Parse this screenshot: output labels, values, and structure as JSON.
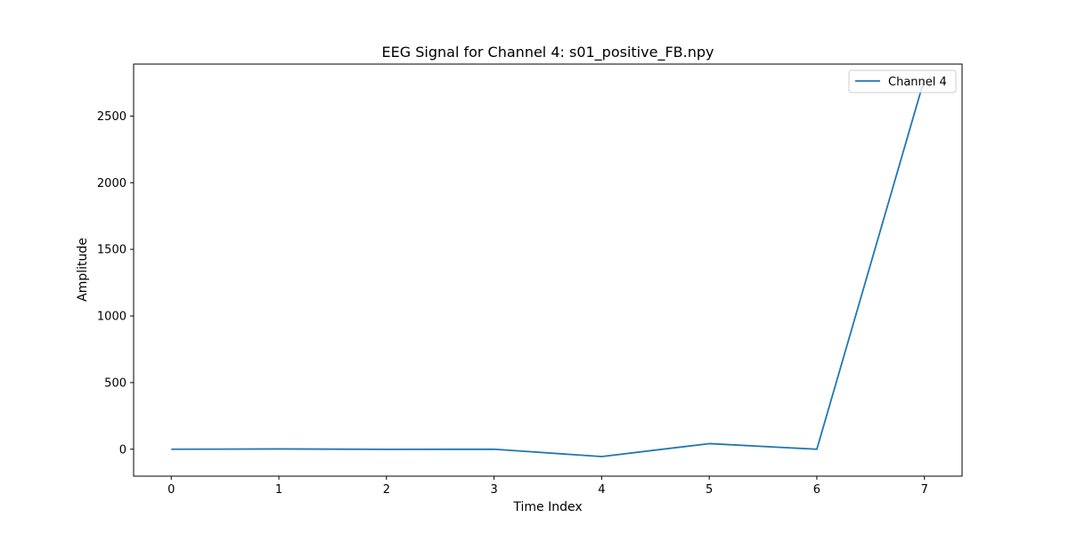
{
  "chart_data": {
    "type": "line",
    "title": "EEG Signal for Channel 4: s01_positive_FB.npy",
    "xlabel": "Time Index",
    "ylabel": "Amplitude",
    "x": [
      0,
      1,
      2,
      3,
      4,
      5,
      6,
      7
    ],
    "series": [
      {
        "name": "Channel 4",
        "color": "#1f77b4",
        "values": [
          0,
          2,
          -1,
          0,
          -55,
          42,
          0,
          2780
        ]
      }
    ],
    "xlim": [
      -0.35,
      7.35
    ],
    "ylim": [
      -202,
      2890
    ],
    "xticks": [
      0,
      1,
      2,
      3,
      4,
      5,
      6,
      7
    ],
    "yticks": [
      0,
      500,
      1000,
      1500,
      2000,
      2500
    ],
    "grid": false,
    "legend_position": "upper right"
  }
}
